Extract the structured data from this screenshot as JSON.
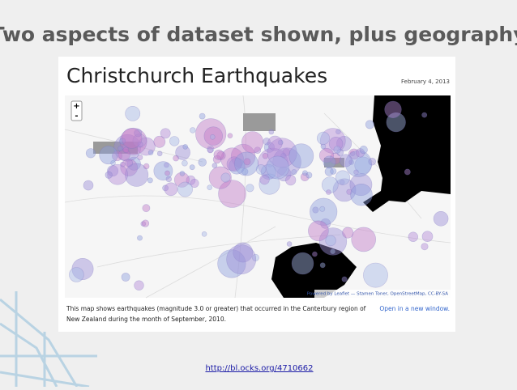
{
  "slide_title": "Two aspects of dataset shown, plus geography",
  "page": {
    "title": "Christchurch Earthquakes",
    "date": "February 4, 2013",
    "zoom_in": "+",
    "zoom_out": "-",
    "attribution": "Powered by Leaflet — Stamen Toner, OpenStreetMap, CC-BY-SA",
    "caption_line_1": "This map shows earthquakes (magnitude 3.0 or greater) that occurred in the Canterbury region of",
    "caption_line_2": "New Zealand during the month of September, 2010.",
    "open_link": "Open in a new window."
  },
  "url": "http://bl.ocks.org/4710662"
}
